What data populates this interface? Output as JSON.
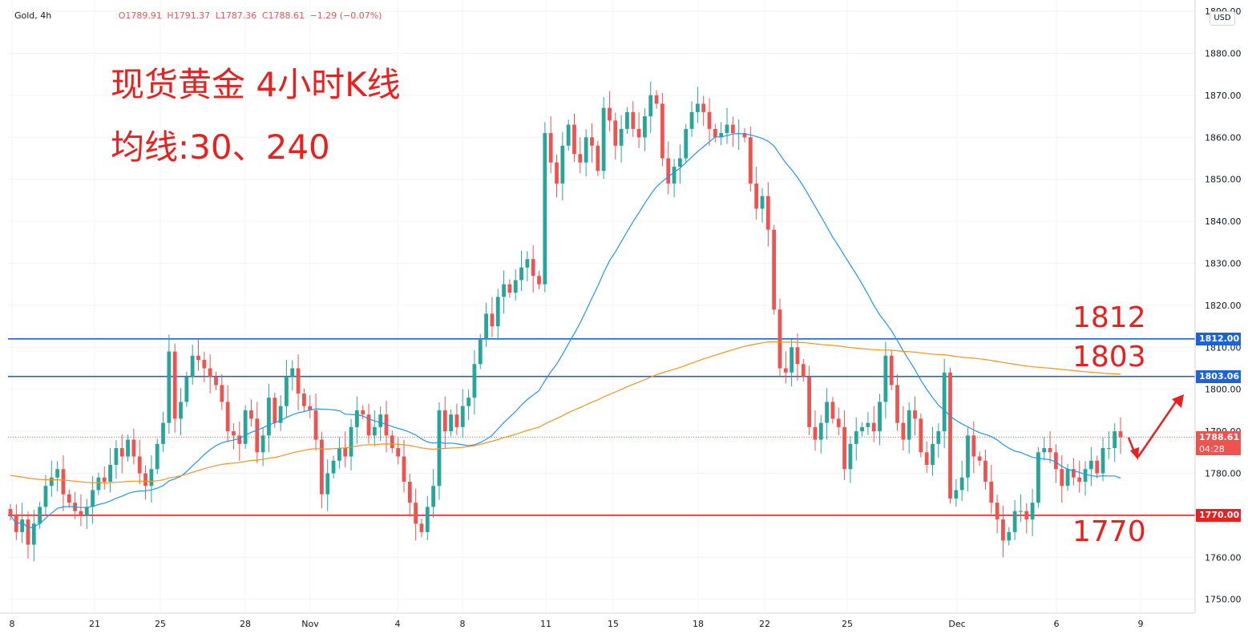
{
  "legend": {
    "symbol": "Gold, 4h",
    "open": "O1789.91",
    "high": "H1791.37",
    "low": "L1787.36",
    "close": "C1788.61",
    "change": "−1.29 (−0.07%)"
  },
  "annotations": {
    "title": "现货黄金 4小时K线",
    "ma_text": "均线:30、240",
    "level_1812": "1812",
    "level_1803": "1803",
    "level_1770": "1770"
  },
  "axis": {
    "currency": "USD",
    "last_price_tag": "1788.61",
    "countdown": "04:28",
    "tag_1812": "1812.00",
    "tag_1803": "1803.06",
    "tag_1770": "1770.00"
  },
  "colors": {
    "up": "#26a69a",
    "down": "#ef5350",
    "ma30": "#2196f3",
    "ma240": "#f7931a",
    "line_blue": "#1e63d6",
    "line_red": "#e8211e",
    "annotation": "#e8211e"
  },
  "chart_data": {
    "type": "candlestick",
    "title": "现货黄金 4小时K线",
    "symbol": "Gold",
    "timeframe": "4h",
    "y_range": [
      1745,
      1890
    ],
    "y_ticks": [
      1750,
      1760,
      1770,
      1780,
      1790,
      1800,
      1810,
      1820,
      1830,
      1840,
      1850,
      1860,
      1870,
      1880,
      1890
    ],
    "x_ticks": [
      "8",
      "21",
      "25",
      "28",
      "Nov",
      "4",
      "8",
      "11",
      "15",
      "18",
      "22",
      "25",
      "Dec",
      "6",
      "9"
    ],
    "horizontal_lines": [
      {
        "price": 1812.0,
        "color": "#1e63d6"
      },
      {
        "price": 1803.06,
        "color": "#1e63d6"
      },
      {
        "price": 1770.0,
        "color": "#e8211e"
      }
    ],
    "last_price": 1788.61,
    "moving_averages": [
      {
        "period": 30,
        "color": "#2196f3"
      },
      {
        "period": 240,
        "color": "#f7931a"
      }
    ],
    "closes": [
      1770,
      1766,
      1769,
      1763,
      1768,
      1772,
      1777,
      1779,
      1781,
      1775,
      1773,
      1771,
      1770,
      1772,
      1776,
      1779,
      1778,
      1782,
      1786,
      1784,
      1788,
      1784,
      1780,
      1777,
      1781,
      1787,
      1792,
      1809,
      1793,
      1797,
      1803,
      1808,
      1807,
      1805,
      1803,
      1801,
      1797,
      1790,
      1789,
      1787,
      1795,
      1793,
      1785,
      1789,
      1798,
      1792,
      1796,
      1803,
      1805,
      1799,
      1796,
      1795,
      1788,
      1775,
      1780,
      1783,
      1786,
      1784,
      1791,
      1795,
      1794,
      1789,
      1791,
      1794,
      1789,
      1786,
      1784,
      1778,
      1773,
      1768,
      1766,
      1772,
      1777,
      1795,
      1790,
      1794,
      1791,
      1796,
      1798,
      1806,
      1812,
      1818,
      1815,
      1822,
      1825,
      1823,
      1826,
      1829,
      1831,
      1827,
      1825,
      1861,
      1854,
      1849,
      1858,
      1863,
      1856,
      1854,
      1860,
      1858,
      1852,
      1867,
      1864,
      1858,
      1862,
      1866,
      1862,
      1860,
      1865,
      1870,
      1868,
      1855,
      1849,
      1853,
      1855,
      1862,
      1866,
      1868,
      1866,
      1862,
      1860,
      1861,
      1863,
      1861,
      1861,
      1860,
      1849,
      1843,
      1846,
      1838,
      1819,
      1805,
      1804,
      1810,
      1806,
      1803,
      1791,
      1788,
      1792,
      1797,
      1793,
      1791,
      1781,
      1787,
      1790,
      1791,
      1792,
      1790,
      1797,
      1808,
      1801,
      1792,
      1788,
      1795,
      1793,
      1785,
      1782,
      1787,
      1790,
      1804,
      1774,
      1776,
      1779,
      1789,
      1784,
      1783,
      1778,
      1773,
      1769,
      1764,
      1766,
      1771,
      1771,
      1769,
      1773,
      1785,
      1786,
      1785,
      1781,
      1777,
      1781,
      1779,
      1778,
      1781,
      1783,
      1780,
      1786,
      1786,
      1790,
      1788.61
    ]
  }
}
